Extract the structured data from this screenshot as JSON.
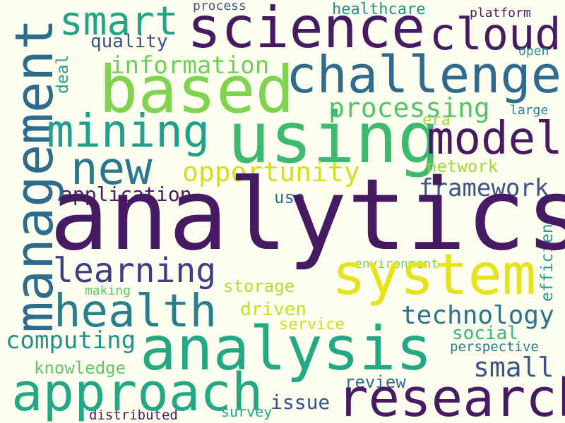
{
  "words": {
    "analytics": {
      "text": "analytics",
      "color": "#461b64"
    },
    "management": {
      "text": "management",
      "color": "#2c6c8c"
    },
    "science": {
      "text": "science",
      "color": "#461b64"
    },
    "cloud": {
      "text": "cloud",
      "color": "#461b64"
    },
    "based": {
      "text": "based",
      "color": "#7fd34e"
    },
    "challenge": {
      "text": "challenge",
      "color": "#2f6b8e"
    },
    "smart": {
      "text": "smart",
      "color": "#21a585"
    },
    "using": {
      "text": "using",
      "color": "#3cba6e"
    },
    "mining": {
      "text": "mining",
      "color": "#1fa088"
    },
    "model": {
      "text": "model",
      "color": "#461b64"
    },
    "new": {
      "text": "new",
      "color": "#2a788e"
    },
    "quality": {
      "text": "quality",
      "color": "#3b528b"
    },
    "information": {
      "text": "information",
      "color": "#6ece58"
    },
    "processing": {
      "text": "processing",
      "color": "#53c569"
    },
    "opportunity": {
      "text": "opportunity",
      "color": "#d0e11c"
    },
    "application": {
      "text": "application",
      "color": "#461b64"
    },
    "framework": {
      "text": "framework",
      "color": "#3b528b"
    },
    "learning": {
      "text": "learning",
      "color": "#3b3f88"
    },
    "system": {
      "text": "system",
      "color": "#e4e419"
    },
    "health": {
      "text": "health",
      "color": "#277f8e"
    },
    "technology": {
      "text": "technology",
      "color": "#2c718e"
    },
    "analysis": {
      "text": "analysis",
      "color": "#23a884"
    },
    "computing": {
      "text": "computing",
      "color": "#21918c"
    },
    "approach": {
      "text": "approach",
      "color": "#22a884"
    },
    "research": {
      "text": "research",
      "color": "#461b64"
    },
    "small": {
      "text": "small",
      "color": "#3b528b"
    },
    "social": {
      "text": "social",
      "color": "#35b779"
    },
    "perspective": {
      "text": "perspective",
      "color": "#2a788e"
    },
    "knowledge": {
      "text": "knowledge",
      "color": "#5ec962"
    },
    "review": {
      "text": "review",
      "color": "#31688e"
    },
    "issue": {
      "text": "issue",
      "color": "#3b528b"
    },
    "survey": {
      "text": "survey",
      "color": "#22a884"
    },
    "distributed": {
      "text": "distributed",
      "color": "#461b64"
    },
    "storage": {
      "text": "storage",
      "color": "#b5de2b"
    },
    "driven": {
      "text": "driven",
      "color": "#c2df23"
    },
    "service": {
      "text": "service",
      "color": "#c8e020"
    },
    "making": {
      "text": "making",
      "color": "#5ec962"
    },
    "environment": {
      "text": "environment",
      "color": "#7ad151"
    },
    "use": {
      "text": "use",
      "color": "#2c718e"
    },
    "efficient": {
      "text": "efficient",
      "color": "#2a9d8f"
    },
    "network": {
      "text": "network",
      "color": "#a0da39"
    },
    "era": {
      "text": "era",
      "color": "#a0da39"
    },
    "large": {
      "text": "large",
      "color": "#277f8e"
    },
    "open": {
      "text": "open",
      "color": "#21918c"
    },
    "platform": {
      "text": "platform",
      "color": "#461b64"
    },
    "healthcare": {
      "text": "healthcare",
      "color": "#21918c"
    },
    "process": {
      "text": "process",
      "color": "#3b528b"
    },
    "deal": {
      "text": "deal",
      "color": "#2a9d8f"
    }
  }
}
